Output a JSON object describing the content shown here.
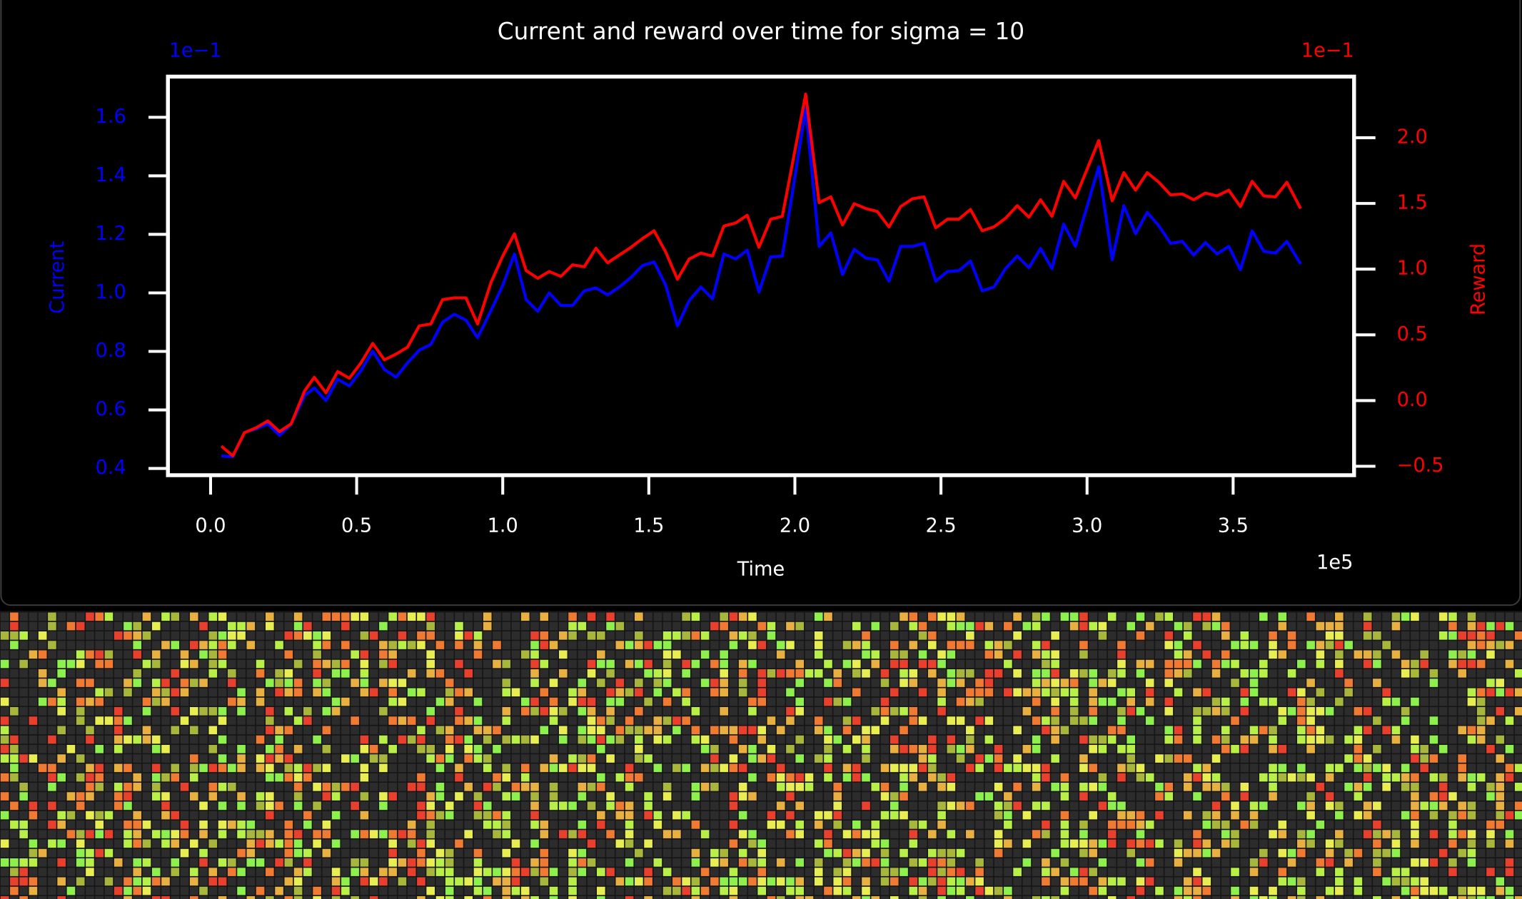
{
  "chart_data": {
    "type": "line",
    "title": "Current and reward over time for sigma = 10",
    "xlabel": "Time",
    "ylabel": "Current",
    "y2label": "Reward",
    "x_offset_label": "1e5",
    "y_offset_label": "1e−1",
    "y2_offset_label": "1e−1",
    "x": [
      0.037,
      0.076,
      0.116,
      0.156,
      0.196,
      0.236,
      0.276,
      0.322,
      0.355,
      0.395,
      0.435,
      0.475,
      0.515,
      0.555,
      0.595,
      0.635,
      0.674,
      0.714,
      0.754,
      0.794,
      0.834,
      0.874,
      0.914,
      0.96,
      1.0,
      1.04,
      1.08,
      1.12,
      1.159,
      1.199,
      1.239,
      1.279,
      1.319,
      1.359,
      1.399,
      1.439,
      1.478,
      1.518,
      1.558,
      1.598,
      1.638,
      1.678,
      1.718,
      1.757,
      1.797,
      1.837,
      1.877,
      1.917,
      1.957,
      2.037,
      2.083,
      2.123,
      2.163,
      2.203,
      2.243,
      2.282,
      2.322,
      2.362,
      2.402,
      2.442,
      2.482,
      2.522,
      2.561,
      2.601,
      2.641,
      2.681,
      2.721,
      2.761,
      2.801,
      2.841,
      2.88,
      2.92,
      2.96,
      3.04,
      3.086,
      3.126,
      3.166,
      3.206,
      3.246,
      3.286,
      3.326,
      3.365,
      3.405,
      3.445,
      3.485,
      3.525,
      3.565,
      3.605,
      3.645,
      3.684,
      3.731
    ],
    "series": [
      {
        "color": "#0000ff",
        "values": [
          0.443,
          0.44,
          0.523,
          0.536,
          0.552,
          0.513,
          0.552,
          0.649,
          0.675,
          0.632,
          0.705,
          0.682,
          0.735,
          0.801,
          0.738,
          0.712,
          0.761,
          0.804,
          0.824,
          0.9,
          0.927,
          0.907,
          0.847,
          0.94,
          1.026,
          1.133,
          0.977,
          0.937,
          1.0,
          0.957,
          0.957,
          1.007,
          1.017,
          0.993,
          1.02,
          1.053,
          1.093,
          1.106,
          1.026,
          0.887,
          0.973,
          1.02,
          0.98,
          1.133,
          1.116,
          1.146,
          1.003,
          1.123,
          1.126,
          1.63,
          1.159,
          1.205,
          1.063,
          1.149,
          1.119,
          1.113,
          1.04,
          1.159,
          1.159,
          1.169,
          1.04,
          1.073,
          1.076,
          1.109,
          1.007,
          1.02,
          1.083,
          1.126,
          1.086,
          1.152,
          1.083,
          1.235,
          1.159,
          1.431,
          1.113,
          1.298,
          1.202,
          1.275,
          1.229,
          1.169,
          1.176,
          1.129,
          1.172,
          1.133,
          1.159,
          1.079,
          1.212,
          1.142,
          1.136,
          1.176,
          1.099
        ]
      },
      {
        "color": "#ff0000",
        "axis": "y2",
        "values": [
          -0.347,
          -0.421,
          -0.244,
          -0.207,
          -0.155,
          -0.236,
          -0.177,
          0.074,
          0.177,
          0.059,
          0.221,
          0.17,
          0.288,
          0.435,
          0.31,
          0.354,
          0.406,
          0.568,
          0.583,
          0.768,
          0.782,
          0.782,
          0.583,
          0.9,
          1.1,
          1.269,
          0.989,
          0.93,
          0.982,
          0.945,
          1.033,
          1.018,
          1.159,
          1.048,
          1.107,
          1.166,
          1.232,
          1.292,
          1.129,
          0.923,
          1.077,
          1.122,
          1.1,
          1.328,
          1.351,
          1.41,
          1.166,
          1.38,
          1.402,
          2.332,
          1.506,
          1.55,
          1.336,
          1.498,
          1.461,
          1.439,
          1.321,
          1.476,
          1.535,
          1.55,
          1.314,
          1.38,
          1.38,
          1.454,
          1.292,
          1.321,
          1.387,
          1.483,
          1.395,
          1.528,
          1.402,
          1.668,
          1.542,
          1.978,
          1.52,
          1.734,
          1.601,
          1.734,
          1.661,
          1.565,
          1.572,
          1.528,
          1.579,
          1.557,
          1.601,
          1.476,
          1.668,
          1.557,
          1.55,
          1.661,
          1.461
        ]
      }
    ],
    "xlim": [
      -0.146,
      3.914
    ],
    "ylim": [
      0.377,
      1.739
    ],
    "y2lim": [
      -0.568,
      2.465
    ],
    "xticks": [
      {
        "value": 0,
        "label": "0.0"
      },
      0.5,
      {
        "value": 1,
        "label": "1.0"
      },
      1.5,
      {
        "value": 2,
        "label": "2.0"
      },
      2.5,
      {
        "value": 3,
        "label": "3.0"
      },
      3.5
    ],
    "yticks": [
      0.4,
      0.6,
      0.8,
      {
        "value": 1,
        "label": "1.0"
      },
      1.2,
      1.4,
      1.6
    ],
    "y2ticks": [
      {
        "value": -0.5,
        "label": "−0.5"
      },
      {
        "value": 0,
        "label": "0.0"
      },
      0.5,
      {
        "value": 1,
        "label": "1.0"
      },
      1.5,
      {
        "value": 2,
        "label": "2.0"
      }
    ]
  }
}
